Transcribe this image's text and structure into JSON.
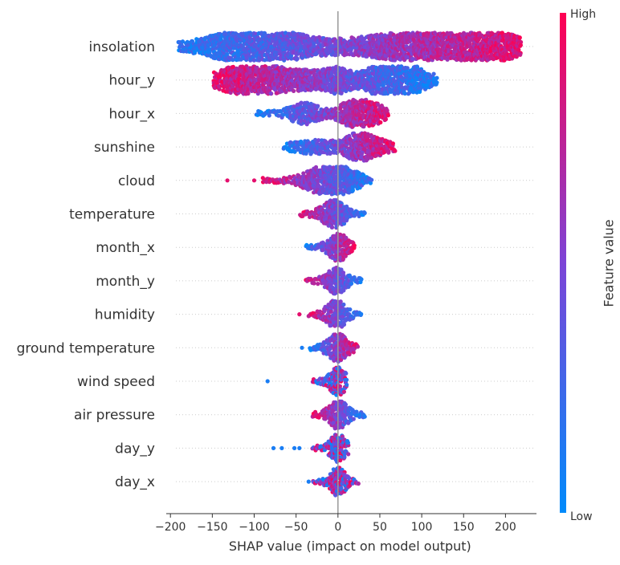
{
  "chart_data": {
    "type": "scatter",
    "subtype": "beeswarm",
    "title": "",
    "xlabel": "SHAP value (impact on model output)",
    "xlim": [
      -205,
      237
    ],
    "xticks": [
      -200,
      -150,
      -100,
      -50,
      0,
      50,
      100,
      150,
      200
    ],
    "grid": false,
    "colorbar": {
      "title": "Feature value",
      "high_label": "High",
      "low_label": "Low",
      "low_color": "#008bfb",
      "mid_color": "#7d44d7",
      "high_color": "#ff0052"
    },
    "features": [
      {
        "name": "insolation",
        "min": -190,
        "max": 218,
        "trend": 1,
        "bulges": [
          [
            -115,
            1.0,
            40
          ],
          [
            -60,
            0.6,
            40
          ],
          [
            60,
            0.55,
            50
          ],
          [
            120,
            0.95,
            45
          ],
          [
            175,
            1.0,
            35
          ]
        ],
        "tails": []
      },
      {
        "name": "hour_y",
        "min": -148,
        "max": 118,
        "trend": -1,
        "bulges": [
          [
            -120,
            0.8,
            25
          ],
          [
            -80,
            0.8,
            25
          ],
          [
            -30,
            0.5,
            20
          ],
          [
            0,
            0.7,
            12
          ],
          [
            55,
            1.0,
            25
          ],
          [
            85,
            0.7,
            20
          ]
        ],
        "tails": []
      },
      {
        "name": "hour_x",
        "min": -97,
        "max": 60,
        "trend": 1,
        "bulges": [
          [
            -40,
            0.7,
            15
          ],
          [
            20,
            1.0,
            15
          ],
          [
            45,
            0.5,
            12
          ]
        ],
        "tails": []
      },
      {
        "name": "sunshine",
        "min": -65,
        "max": 68,
        "trend": 1,
        "bulges": [
          [
            -25,
            0.4,
            25
          ],
          [
            25,
            1.0,
            12
          ],
          [
            50,
            0.4,
            12
          ]
        ],
        "tails": []
      },
      {
        "name": "cloud",
        "min": -90,
        "max": 40,
        "trend": -1,
        "bulges": [
          [
            -20,
            0.9,
            18
          ],
          [
            10,
            0.7,
            15
          ]
        ],
        "tails": [
          -132,
          -100
        ]
      },
      {
        "name": "temperature",
        "min": -45,
        "max": 32,
        "trend": -1,
        "bulges": [
          [
            -5,
            1.0,
            12
          ]
        ],
        "tails": []
      },
      {
        "name": "month_x",
        "min": -38,
        "max": 20,
        "trend": 1,
        "bulges": [
          [
            0,
            1.0,
            10
          ]
        ],
        "tails": []
      },
      {
        "name": "month_y",
        "min": -38,
        "max": 28,
        "trend": -1,
        "bulges": [
          [
            -2,
            0.9,
            10
          ]
        ],
        "tails": []
      },
      {
        "name": "humidity",
        "min": -35,
        "max": 28,
        "trend": -1,
        "bulges": [
          [
            -2,
            1.0,
            10
          ]
        ],
        "tails": [
          -46
        ]
      },
      {
        "name": "ground temperature",
        "min": -33,
        "max": 24,
        "trend": 1,
        "bulges": [
          [
            0,
            1.0,
            10
          ]
        ],
        "tails": [
          -43
        ]
      },
      {
        "name": "wind speed",
        "min": -30,
        "max": 10,
        "trend": 0,
        "bulges": [
          [
            0,
            1.0,
            8
          ]
        ],
        "tails": [
          -84
        ]
      },
      {
        "name": "air pressure",
        "min": -30,
        "max": 32,
        "trend": -1,
        "bulges": [
          [
            0,
            1.0,
            10
          ]
        ],
        "tails": []
      },
      {
        "name": "day_y",
        "min": -30,
        "max": 12,
        "trend": 0,
        "bulges": [
          [
            0,
            1.0,
            8
          ]
        ],
        "tails": [
          -77,
          -67,
          -52,
          -46
        ]
      },
      {
        "name": "day_x",
        "min": -30,
        "max": 24,
        "trend": 0,
        "bulges": [
          [
            0,
            1.0,
            8
          ]
        ],
        "tails": [
          -35
        ]
      }
    ]
  }
}
